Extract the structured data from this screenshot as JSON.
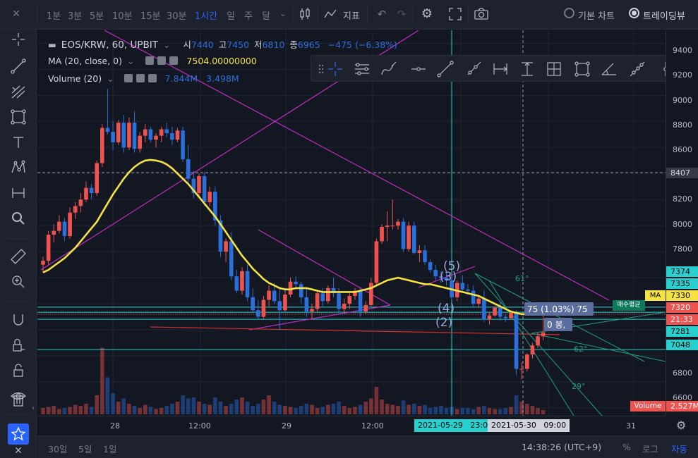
{
  "toolbar": {
    "timeframes": [
      {
        "label": "1분",
        "active": false
      },
      {
        "label": "3분",
        "active": false
      },
      {
        "label": "5분",
        "active": false
      },
      {
        "label": "10분",
        "active": false
      },
      {
        "label": "15분",
        "active": false
      },
      {
        "label": "30분",
        "active": false
      },
      {
        "label": "1시간",
        "active": true
      },
      {
        "label": "일",
        "active": false
      },
      {
        "label": "주",
        "active": false
      },
      {
        "label": "달",
        "active": false
      }
    ],
    "indicators_label": "지표",
    "basic_chart_label": "기본 차트",
    "tradingview_label": "트레이딩뷰"
  },
  "legend": {
    "symbol": "EOS/KRW, 60, UPBIT",
    "open_label": "시",
    "open": "7440",
    "high_label": "고",
    "high": "7450",
    "low_label": "저",
    "low": "6810",
    "close_label": "종",
    "close": "6965",
    "change": "−475 (−6.38%)",
    "ma_label": "MA (20, close, 0)",
    "ma_value": "7504.00000000",
    "volume_label": "Volume (20)",
    "volume_value": "7.844M",
    "volume_ma_value": "3.498M"
  },
  "price_axis": {
    "labels": [
      "9400",
      "9200",
      "9000",
      "8800",
      "8600",
      "8200",
      "8000",
      "7800",
      "6800",
      "6600"
    ],
    "tags": [
      {
        "text": "8407",
        "bg": "#1e222d",
        "fg": "#d1d4dc"
      },
      {
        "text": "7374",
        "bg": "#26d0ce",
        "fg": "#000000"
      },
      {
        "text": "7335",
        "bg": "#26d0ce",
        "fg": "#000000"
      },
      {
        "text": "7330",
        "bg": "#f5e342",
        "fg": "#000000"
      },
      {
        "text": "7320",
        "bg": "#ef5350",
        "fg": "#ffffff"
      },
      {
        "text": "21:33",
        "bg": "#ef5350",
        "fg": "#ffffff"
      },
      {
        "text": "7281",
        "bg": "#26d0ce",
        "fg": "#000000"
      },
      {
        "text": "7048",
        "bg": "#26d0ce",
        "fg": "#000000"
      },
      {
        "text": "2.527M",
        "bg": "#ef5350",
        "fg": "#ffffff"
      }
    ],
    "ma_tag": "MA",
    "volume_tag": "Volume",
    "avg_price_tag": "매수평균"
  },
  "time_axis": {
    "labels": [
      "28",
      "12:00",
      "29",
      "12:00",
      "31"
    ],
    "tags": [
      "2021-05-29   23:00",
      "2021-05-30   09:00"
    ]
  },
  "chart_texts": {
    "wave5": "(5)",
    "wave3": "(3)",
    "wave4": "(4)",
    "wave2": "(2)",
    "fib61": "61°",
    "measure": "75 (1.03%) 75",
    "bars": "0 봉,",
    "deg29": "29°",
    "deg62": "62°"
  },
  "bottom": {
    "ranges": [
      "30일",
      "5일",
      "1일"
    ],
    "clock": "14:38:26 (UTC+9)",
    "percent": "%",
    "log": "로그",
    "auto": "자동"
  },
  "chart_data": {
    "type": "candlestick",
    "colors": {
      "up": "#ef5350",
      "down": "#2a6fdb",
      "ma": "#f5e342"
    },
    "candles": [
      [
        7700,
        7760,
        7640,
        7730
      ],
      [
        7730,
        7960,
        7700,
        7930
      ],
      [
        7930,
        8010,
        7870,
        7960
      ],
      [
        7960,
        8080,
        7940,
        8030
      ],
      [
        8030,
        8060,
        7880,
        7920
      ],
      [
        7920,
        8140,
        7900,
        8100
      ],
      [
        8100,
        8180,
        8050,
        8150
      ],
      [
        8150,
        8250,
        8100,
        8200
      ],
      [
        8200,
        8340,
        8180,
        8290
      ],
      [
        8290,
        8320,
        8200,
        8250
      ],
      [
        8250,
        8500,
        8230,
        8480
      ],
      [
        8480,
        8780,
        8450,
        8750
      ],
      [
        8750,
        9050,
        8700,
        8720
      ],
      [
        8720,
        8800,
        8580,
        8640
      ],
      [
        8640,
        8810,
        8620,
        8790
      ],
      [
        8790,
        8850,
        8560,
        8600
      ],
      [
        8600,
        8830,
        8580,
        8790
      ],
      [
        8790,
        8880,
        8560,
        8590
      ],
      [
        8590,
        8720,
        8560,
        8690
      ],
      [
        8690,
        8780,
        8640,
        8740
      ],
      [
        8740,
        8760,
        8640,
        8660
      ],
      [
        8660,
        8710,
        8600,
        8690
      ],
      [
        8690,
        8760,
        8640,
        8740
      ],
      [
        8740,
        8790,
        8680,
        8710
      ],
      [
        8710,
        8760,
        8620,
        8660
      ],
      [
        8660,
        8750,
        8640,
        8730
      ],
      [
        8730,
        8760,
        8490,
        8510
      ],
      [
        8510,
        8620,
        8330,
        8360
      ],
      [
        8360,
        8420,
        8210,
        8250
      ],
      [
        8250,
        8400,
        8220,
        8380
      ],
      [
        8380,
        8410,
        8150,
        8180
      ],
      [
        8180,
        8300,
        8150,
        8260
      ],
      [
        8260,
        8300,
        8000,
        8040
      ],
      [
        8040,
        8080,
        7760,
        7800
      ],
      [
        7800,
        7900,
        7720,
        7880
      ],
      [
        7880,
        7950,
        7580,
        7610
      ],
      [
        7610,
        7660,
        7480,
        7500
      ],
      [
        7500,
        7680,
        7470,
        7650
      ],
      [
        7650,
        7700,
        7420,
        7450
      ],
      [
        7450,
        7520,
        7330,
        7350
      ],
      [
        7350,
        7430,
        7280,
        7300
      ],
      [
        7300,
        7460,
        7280,
        7430
      ],
      [
        7430,
        7540,
        7380,
        7500
      ],
      [
        7500,
        7560,
        7400,
        7420
      ],
      [
        7420,
        7520,
        7200,
        7350
      ],
      [
        7350,
        7520,
        7340,
        7470
      ],
      [
        7470,
        7600,
        7450,
        7570
      ],
      [
        7570,
        7610,
        7510,
        7550
      ],
      [
        7550,
        7570,
        7400,
        7450
      ],
      [
        7450,
        7520,
        7300,
        7340
      ],
      [
        7340,
        7400,
        7280,
        7360
      ],
      [
        7360,
        7500,
        7340,
        7480
      ],
      [
        7480,
        7520,
        7380,
        7420
      ],
      [
        7420,
        7540,
        7400,
        7520
      ],
      [
        7520,
        7600,
        7450,
        7480
      ],
      [
        7480,
        7520,
        7320,
        7360
      ],
      [
        7360,
        7440,
        7330,
        7400
      ],
      [
        7400,
        7480,
        7360,
        7460
      ],
      [
        7460,
        7520,
        7430,
        7500
      ],
      [
        7500,
        7520,
        7300,
        7340
      ],
      [
        7340,
        7420,
        7320,
        7390
      ],
      [
        7390,
        7600,
        7380,
        7560
      ],
      [
        7560,
        7900,
        7540,
        7880
      ],
      [
        7880,
        8010,
        7860,
        7990
      ],
      [
        7990,
        8110,
        7880,
        8000
      ],
      [
        8000,
        8200,
        7970,
        8000
      ],
      [
        8000,
        8050,
        7970,
        8030
      ],
      [
        8030,
        8060,
        7800,
        7820
      ],
      [
        7820,
        8030,
        7800,
        8000
      ],
      [
        8000,
        8030,
        7780,
        7790
      ],
      [
        7790,
        7850,
        7720,
        7810
      ],
      [
        7810,
        7850,
        7700,
        7720
      ],
      [
        7720,
        7740,
        7640,
        7660
      ],
      [
        7660,
        7700,
        7580,
        7610
      ],
      [
        7610,
        7650,
        7560,
        7600
      ],
      [
        7600,
        7650,
        7540,
        7580
      ],
      [
        7580,
        7610,
        7430,
        7450
      ],
      [
        7450,
        7580,
        7420,
        7560
      ],
      [
        7560,
        7620,
        7500,
        7510
      ],
      [
        7510,
        7550,
        7470,
        7500
      ],
      [
        7500,
        7540,
        7380,
        7400
      ],
      [
        7400,
        7460,
        7370,
        7440
      ],
      [
        7440,
        7500,
        7260,
        7280
      ],
      [
        7280,
        7330,
        7240,
        7310
      ],
      [
        7310,
        7380,
        7300,
        7370
      ],
      [
        7370,
        7420,
        7270,
        7300
      ],
      [
        7300,
        7320,
        7260,
        7290
      ],
      [
        7290,
        7350,
        7280,
        7330
      ],
      [
        7330,
        7350,
        6850,
        6900
      ],
      [
        6900,
        6950,
        6820,
        6900
      ],
      [
        6900,
        7020,
        6880,
        7010
      ],
      [
        7010,
        7100,
        6980,
        7080
      ],
      [
        7080,
        7180,
        7060,
        7150
      ],
      [
        7150,
        7320,
        7120,
        7180
      ]
    ],
    "ma": [
      7640,
      7660,
      7690,
      7720,
      7750,
      7790,
      7830,
      7880,
      7930,
      7980,
      8030,
      8100,
      8170,
      8240,
      8300,
      8360,
      8410,
      8450,
      8480,
      8500,
      8505,
      8500,
      8490,
      8470,
      8440,
      8400,
      8360,
      8320,
      8270,
      8220,
      8170,
      8120,
      8070,
      8010,
      7950,
      7890,
      7830,
      7770,
      7720,
      7670,
      7630,
      7590,
      7560,
      7540,
      7520,
      7510,
      7510,
      7520,
      7520,
      7520,
      7510,
      7500,
      7490,
      7490,
      7490,
      7490,
      7490,
      7490,
      7490,
      7500,
      7510,
      7520,
      7540,
      7560,
      7580,
      7590,
      7600,
      7590,
      7580,
      7570,
      7560,
      7550,
      7550,
      7540,
      7530,
      7520,
      7510,
      7500,
      7490,
      7480,
      7470,
      7460,
      7440,
      7420,
      7400,
      7380,
      7360,
      7340,
      7330,
      7320,
      7320,
      7320,
      7320,
      7330
    ],
    "volume": [
      0.6,
      0.7,
      0.8,
      0.5,
      0.6,
      0.7,
      0.9,
      0.8,
      1.0,
      0.7,
      1.8,
      6.3,
      3.5,
      2.0,
      1.2,
      1.5,
      1.0,
      0.8,
      0.6,
      0.9,
      0.7,
      0.5,
      0.6,
      0.8,
      1.0,
      1.2,
      1.8,
      1.5,
      1.6,
      1.2,
      1.0,
      0.9,
      1.6,
      1.2,
      0.8,
      1.0,
      1.4,
      1.6,
      1.2,
      0.8,
      1.0,
      1.4,
      1.8,
      1.2,
      0.9,
      0.8,
      0.7,
      0.6,
      0.8,
      1.0,
      0.9,
      0.6,
      0.7,
      0.9,
      1.0,
      1.2,
      0.8,
      0.6,
      0.7,
      0.9,
      1.2,
      1.5,
      2.6,
      1.4,
      1.0,
      0.9,
      0.8,
      1.3,
      0.9,
      1.0,
      0.8,
      0.9,
      0.6,
      0.7,
      0.8,
      0.6,
      0.7,
      0.5,
      0.6,
      0.6,
      0.5,
      0.7,
      0.8,
      0.6,
      0.5,
      0.5,
      0.6,
      0.7,
      1.8,
      1.2,
      1.0,
      0.8,
      0.6,
      0.4
    ],
    "price_range": [
      6540,
      9500
    ]
  }
}
